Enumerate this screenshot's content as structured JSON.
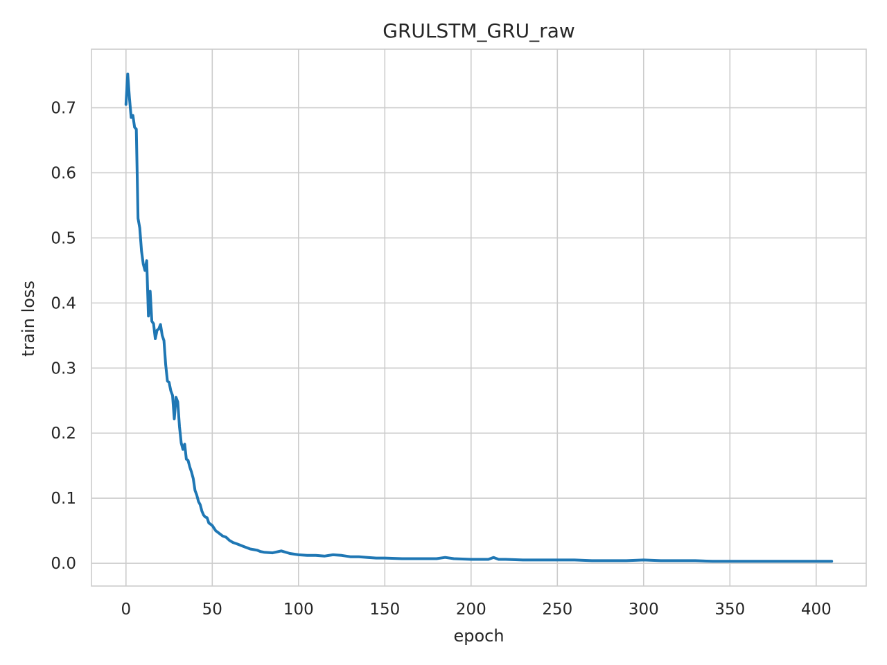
{
  "chart_data": {
    "type": "line",
    "title": "GRULSTM_GRU_raw",
    "xlabel": "epoch",
    "ylabel": "train loss",
    "xlim": [
      -20,
      429
    ],
    "ylim": [
      -0.035,
      0.79
    ],
    "xticks": [
      0,
      50,
      100,
      150,
      200,
      250,
      300,
      350,
      400
    ],
    "xtick_labels": [
      "0",
      "50",
      "100",
      "150",
      "200",
      "250",
      "300",
      "350",
      "400"
    ],
    "yticks": [
      0.0,
      0.1,
      0.2,
      0.3,
      0.4,
      0.5,
      0.6,
      0.7
    ],
    "ytick_labels": [
      "0.0",
      "0.1",
      "0.2",
      "0.3",
      "0.4",
      "0.5",
      "0.6",
      "0.7"
    ],
    "grid": true,
    "line_color": "#1f77b4",
    "series": [
      {
        "x": [
          0,
          1,
          2,
          3,
          4,
          5,
          6,
          7,
          8,
          9,
          10,
          11,
          12,
          13,
          14,
          15,
          16,
          17,
          18,
          19,
          20,
          21,
          22,
          23,
          24,
          25,
          26,
          27,
          28,
          29,
          30,
          31,
          32,
          33,
          34,
          35,
          36,
          37,
          38,
          39,
          40,
          41,
          42,
          43,
          44,
          45,
          46,
          47,
          48,
          50,
          52,
          54,
          56,
          58,
          60,
          62,
          64,
          66,
          68,
          70,
          72,
          74,
          76,
          78,
          80,
          85,
          90,
          95,
          100,
          105,
          110,
          115,
          120,
          125,
          130,
          135,
          140,
          145,
          150,
          160,
          170,
          180,
          185,
          190,
          200,
          210,
          213,
          216,
          220,
          230,
          240,
          250,
          260,
          270,
          280,
          290,
          300,
          310,
          320,
          330,
          340,
          350,
          360,
          370,
          380,
          390,
          400,
          409
        ],
        "y": [
          0.705,
          0.752,
          0.715,
          0.685,
          0.688,
          0.67,
          0.667,
          0.53,
          0.515,
          0.48,
          0.46,
          0.45,
          0.465,
          0.38,
          0.418,
          0.372,
          0.368,
          0.345,
          0.358,
          0.36,
          0.367,
          0.35,
          0.342,
          0.305,
          0.28,
          0.278,
          0.265,
          0.258,
          0.222,
          0.255,
          0.248,
          0.21,
          0.185,
          0.175,
          0.183,
          0.16,
          0.158,
          0.148,
          0.14,
          0.13,
          0.112,
          0.105,
          0.095,
          0.09,
          0.08,
          0.074,
          0.071,
          0.07,
          0.062,
          0.058,
          0.05,
          0.046,
          0.042,
          0.04,
          0.035,
          0.032,
          0.03,
          0.028,
          0.026,
          0.024,
          0.022,
          0.021,
          0.02,
          0.018,
          0.017,
          0.016,
          0.019,
          0.015,
          0.013,
          0.012,
          0.012,
          0.011,
          0.013,
          0.012,
          0.01,
          0.01,
          0.009,
          0.008,
          0.008,
          0.007,
          0.007,
          0.007,
          0.009,
          0.007,
          0.006,
          0.006,
          0.009,
          0.006,
          0.006,
          0.005,
          0.005,
          0.005,
          0.005,
          0.004,
          0.004,
          0.004,
          0.005,
          0.004,
          0.004,
          0.004,
          0.003,
          0.003,
          0.003,
          0.003,
          0.003,
          0.003,
          0.003,
          0.003
        ]
      }
    ]
  }
}
